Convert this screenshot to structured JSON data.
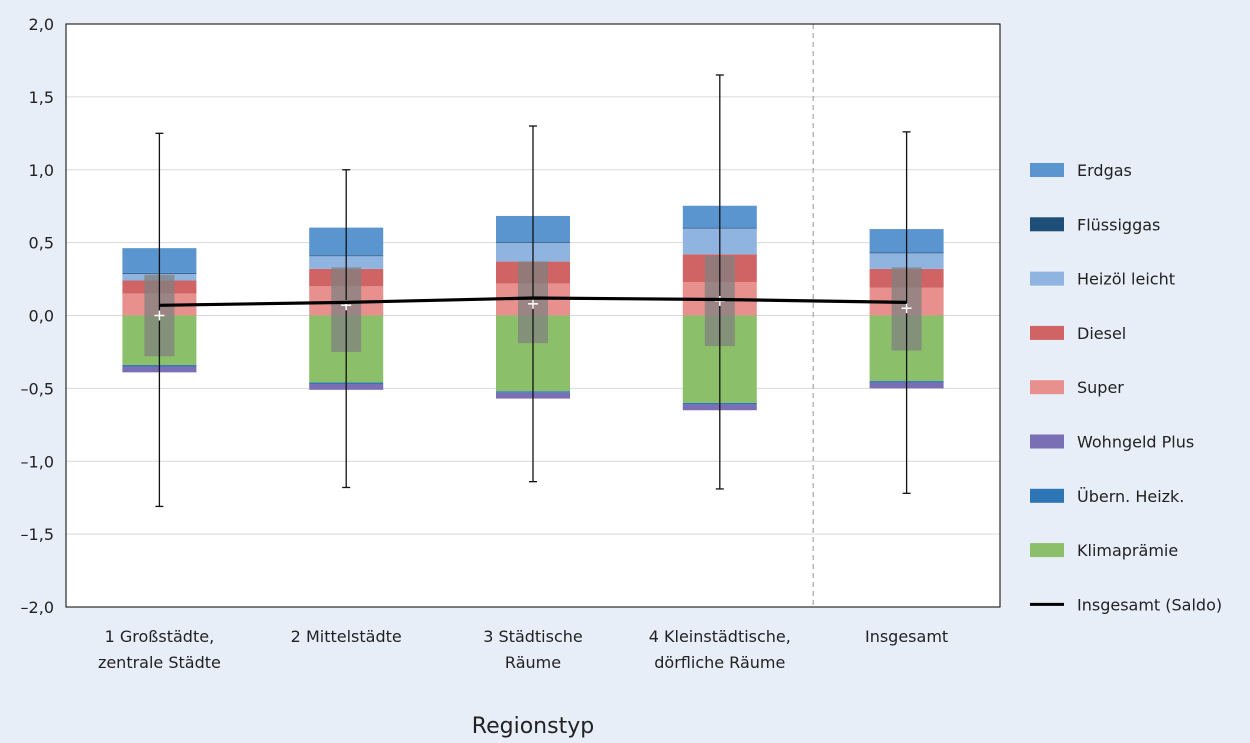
{
  "chart_data": {
    "type": "bar",
    "xlabel": "Regionstyp",
    "ylim": [
      -2.0,
      2.0
    ],
    "yticks": [
      2.0,
      1.5,
      1.0,
      0.5,
      0.0,
      -0.5,
      -1.0,
      -1.5,
      -2.0
    ],
    "ytick_labels": [
      "2,0",
      "1,5",
      "1,0",
      "0,5",
      "0,0",
      "–0,5",
      "–1,0",
      "–1,5",
      "–2,0"
    ],
    "grid": true,
    "legend_position": "right",
    "categories": [
      [
        "1 Großstädte,",
        "zentrale Städte"
      ],
      [
        "2 Mittelstädte"
      ],
      [
        "3 Städtische",
        "Räume"
      ],
      [
        "4 Kleinstädtische,",
        "dörfliche Räume"
      ],
      [
        "Insgesamt"
      ]
    ],
    "series": [
      {
        "name": "Super",
        "color": "#e8908e",
        "values": [
          0.15,
          0.2,
          0.22,
          0.23,
          0.19
        ]
      },
      {
        "name": "Diesel",
        "color": "#d06464",
        "values": [
          0.09,
          0.12,
          0.15,
          0.19,
          0.13
        ]
      },
      {
        "name": "Heizöl leicht",
        "color": "#8fb4e0",
        "values": [
          0.05,
          0.09,
          0.13,
          0.18,
          0.11
        ]
      },
      {
        "name": "Flüssiggas",
        "color": "#1f4e79",
        "values": [
          0.002,
          0.003,
          0.003,
          0.003,
          0.003
        ]
      },
      {
        "name": "Erdgas",
        "color": "#5b95cf",
        "values": [
          0.17,
          0.19,
          0.18,
          0.15,
          0.16
        ]
      },
      {
        "name": "Klimaprämie",
        "color": "#8cbf6a",
        "values": [
          -0.34,
          -0.46,
          -0.52,
          -0.6,
          -0.45
        ]
      },
      {
        "name": "Übern. Heizk.",
        "color": "#2e75b6",
        "values": [
          -0.01,
          -0.01,
          -0.01,
          -0.01,
          -0.01
        ]
      },
      {
        "name": "Wohngeld Plus",
        "color": "#7a6eb5",
        "values": [
          -0.04,
          -0.04,
          -0.04,
          -0.04,
          -0.04
        ]
      }
    ],
    "saldo": {
      "name": "Insgesamt (Saldo)",
      "color": "#000000",
      "values": [
        0.07,
        0.09,
        0.12,
        0.11,
        0.09
      ]
    },
    "box": {
      "color": "#808080",
      "q1": [
        -0.28,
        -0.25,
        -0.19,
        -0.21,
        -0.24
      ],
      "q3": [
        0.28,
        0.33,
        0.37,
        0.41,
        0.33
      ]
    },
    "whiskers": {
      "min": [
        -1.31,
        -1.18,
        -1.14,
        -1.19,
        -1.22
      ],
      "max": [
        1.25,
        1.0,
        1.3,
        1.65,
        1.26
      ]
    },
    "median": [
      0.0,
      0.07,
      0.08,
      0.1,
      0.05
    ],
    "legend_order": [
      "Erdgas",
      "Flüssiggas",
      "Heizöl leicht",
      "Diesel",
      "Super",
      "Wohngeld Plus",
      "Übern. Heizk.",
      "Klimaprämie",
      "Insgesamt (Saldo)"
    ]
  }
}
